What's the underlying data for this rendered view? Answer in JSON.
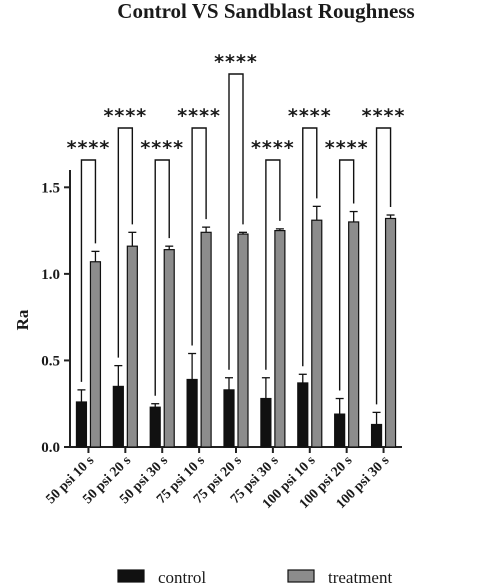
{
  "chart_data": {
    "type": "bar",
    "title": "Control VS Sandblast Roughness",
    "ylabel": "Ra",
    "xlabel": "",
    "ylim": [
      0,
      1.6
    ],
    "yticks": [
      "0.0",
      "0.5",
      "1.0",
      "1.5"
    ],
    "categories": [
      "50 psi 10 s",
      "50 psi 20 s",
      "50 psi 30 s",
      "75 psi 10 s",
      "75 psi 20 s",
      "75 psi 30 s",
      "100 psi 10 s",
      "100 psi 20 s",
      "100 psi 30 s"
    ],
    "series": [
      {
        "name": "control",
        "color": "#111111",
        "values": [
          0.26,
          0.35,
          0.23,
          0.39,
          0.33,
          0.28,
          0.37,
          0.19,
          0.13
        ],
        "errors": [
          0.07,
          0.12,
          0.02,
          0.15,
          0.07,
          0.12,
          0.05,
          0.09,
          0.07
        ]
      },
      {
        "name": "treatment",
        "color": "#8c8c8c",
        "values": [
          1.07,
          1.16,
          1.14,
          1.24,
          1.23,
          1.25,
          1.31,
          1.3,
          1.32
        ],
        "errors": [
          0.06,
          0.08,
          0.02,
          0.03,
          0.01,
          0.01,
          0.08,
          0.06,
          0.02
        ]
      }
    ],
    "significance_label": "****",
    "legend_position": "bottom",
    "grid": false
  }
}
